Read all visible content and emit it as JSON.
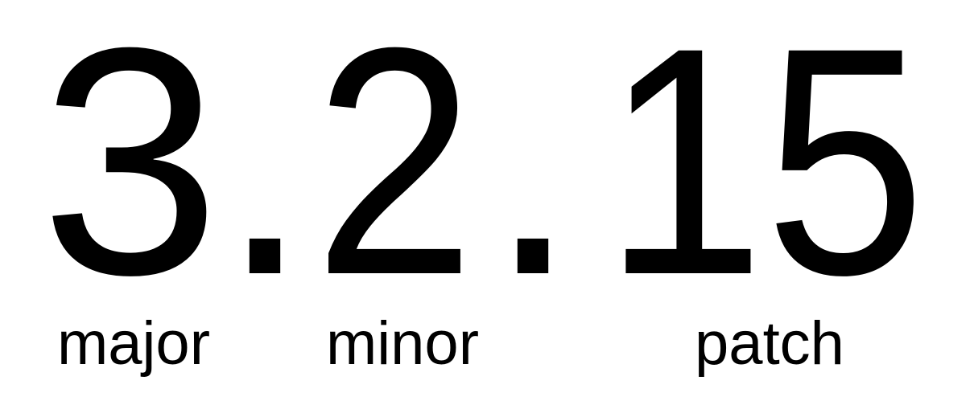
{
  "version": {
    "major": "3",
    "separator_1": ".",
    "minor": "2",
    "separator_2": ".",
    "patch": "15"
  },
  "labels": {
    "major": "major",
    "minor": "minor",
    "patch": "patch"
  },
  "colors": {
    "text": "#000000",
    "background": "#ffffff"
  }
}
